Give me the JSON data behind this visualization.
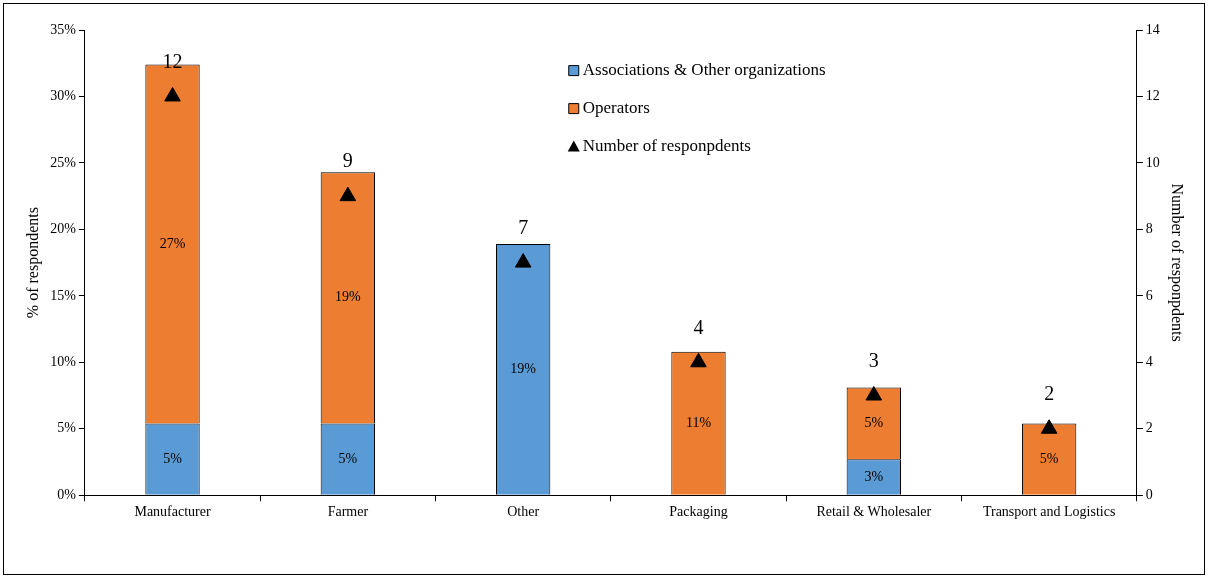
{
  "chart_data": {
    "type": "bar",
    "stacked": true,
    "ylabel": "% of respondents",
    "y2label": "Number of responpdents",
    "categories": [
      "Manufacturer",
      "Farmer",
      "Other",
      "Packaging",
      "Retail & Wholesaler",
      "Transport and Logistics"
    ],
    "series": [
      {
        "name": "Associations & Other organizations",
        "color": "#5b9bd5",
        "values": [
          5.4,
          5.4,
          18.9,
          null,
          2.7,
          null
        ],
        "value_labels": [
          "5%",
          "5%",
          "19%",
          null,
          "3%",
          null
        ]
      },
      {
        "name": "Operators",
        "color": "#ed7d31",
        "values": [
          27.0,
          18.9,
          null,
          10.8,
          5.4,
          5.4
        ],
        "value_labels": [
          "27%",
          "19%",
          null,
          "11%",
          "5%",
          "5%"
        ]
      },
      {
        "name": "Number of responpdents",
        "type": "scatter",
        "axis": "y2",
        "color": "#000000",
        "marker": "triangle",
        "x": [
          "Manufacturer",
          "Farmer",
          "Other",
          "Packaging",
          "Retail & Wholesaler",
          "Transport and Logistics"
        ],
        "values": [
          12,
          9,
          7,
          4,
          3,
          2
        ],
        "value_labels": [
          "12",
          "9",
          "7",
          "4",
          "3",
          "2"
        ]
      }
    ],
    "ylim": [
      0,
      35
    ],
    "yticks": [
      {
        "value": 0,
        "label": "0%"
      },
      {
        "value": 5,
        "label": "5%"
      },
      {
        "value": 10,
        "label": "10%"
      },
      {
        "value": 15,
        "label": "15%"
      },
      {
        "value": 20,
        "label": "20%"
      },
      {
        "value": 25,
        "label": "25%"
      },
      {
        "value": 30,
        "label": "30%"
      },
      {
        "value": 35,
        "label": "35%"
      }
    ],
    "y2lim": [
      0,
      14
    ],
    "y2ticks": [
      0,
      2,
      4,
      6,
      8,
      10,
      12,
      14
    ],
    "grid": false,
    "legend": "top"
  }
}
